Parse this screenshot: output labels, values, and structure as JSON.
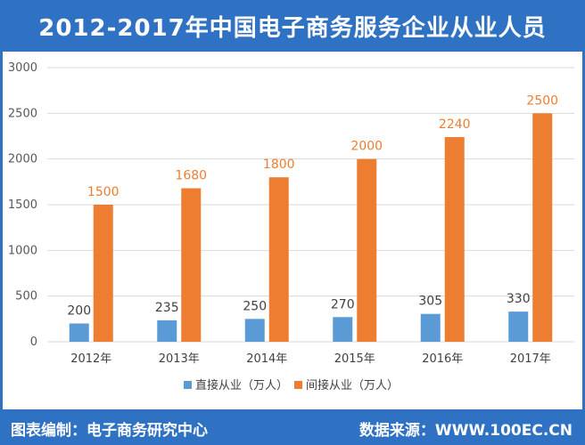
{
  "title": "2012-2017年中国电子商务服务企业从业人员",
  "footer": {
    "left": "图表编制：电子商务研究中心",
    "right": "数据来源：WWW.100EC.CN"
  },
  "colors": {
    "brand": "#2f72c4",
    "series1": "#5b9bd5",
    "series2": "#ed7d31",
    "grid": "#d9d9d9"
  },
  "chart_data": {
    "type": "bar",
    "title": "2012-2017年中国电子商务服务企业从业人员",
    "xlabel": "",
    "ylabel": "",
    "categories": [
      "2012年",
      "2013年",
      "2014年",
      "2015年",
      "2016年",
      "2017年"
    ],
    "series": [
      {
        "name": "直接从业（万人）",
        "values": [
          200,
          235,
          250,
          270,
          305,
          330
        ]
      },
      {
        "name": "间接从业（万人）",
        "values": [
          1500,
          1680,
          1800,
          2000,
          2240,
          2500
        ]
      }
    ],
    "ylim": [
      0,
      3000
    ],
    "yticks": [
      "0",
      "500",
      "1000",
      "1500",
      "2000",
      "2500",
      "3000"
    ],
    "grid": true,
    "legend": "bottom"
  }
}
